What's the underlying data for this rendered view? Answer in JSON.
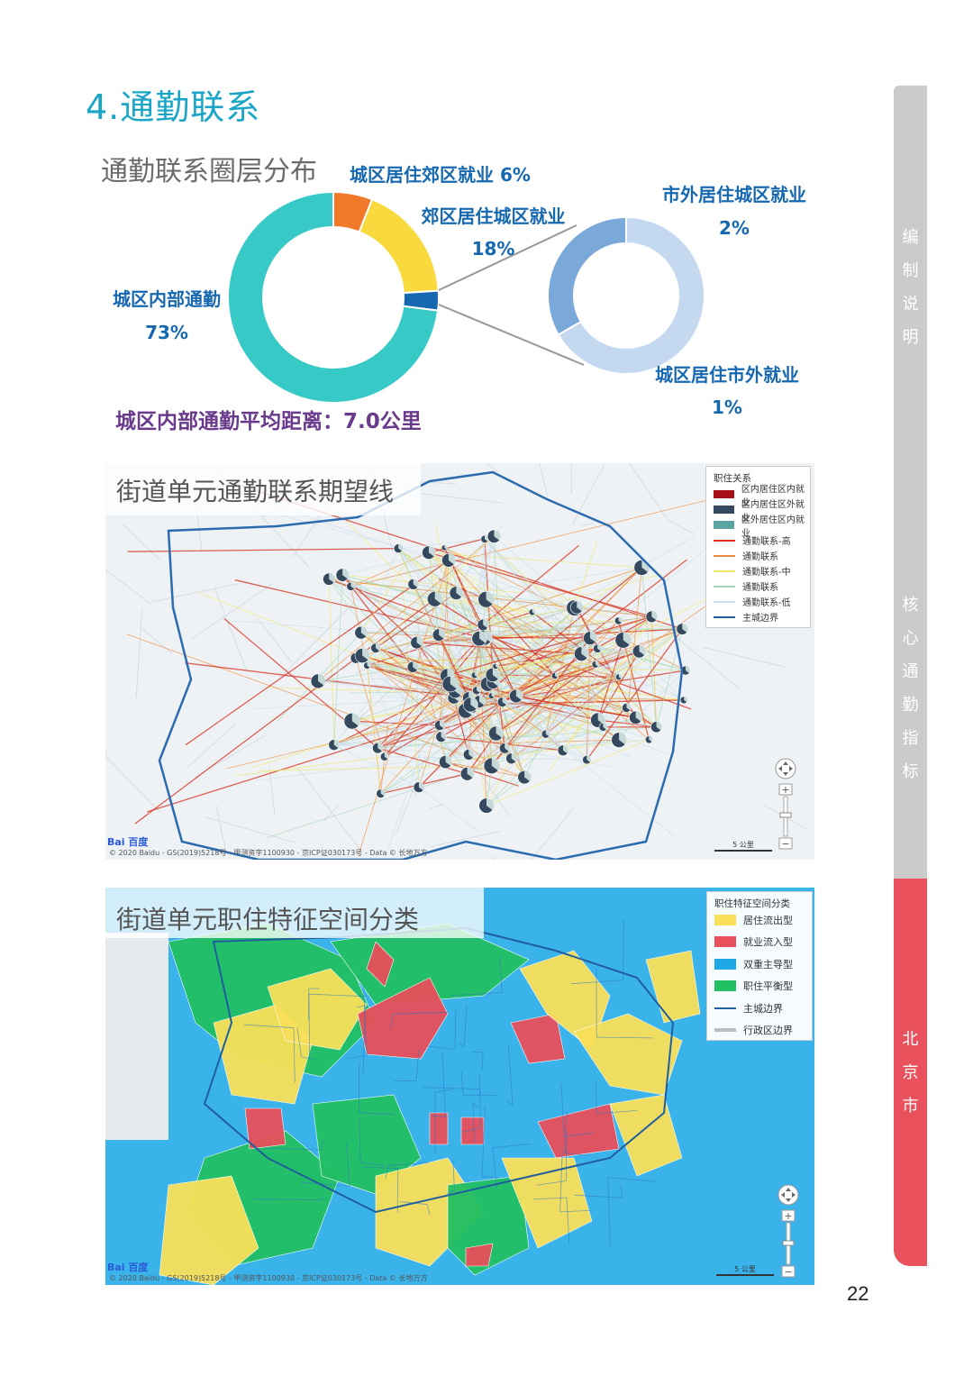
{
  "page": {
    "title": "4.通勤联系",
    "page_number": "22"
  },
  "donut": {
    "title": "通勤联系圈层分布",
    "main_labels": {
      "inner_city_name": "城区内部通勤",
      "inner_city_pct": "73%",
      "city_to_suburb": "城区居住郊区就业 6%",
      "suburb_to_city_name": "郊区居住城区就业",
      "suburb_to_city_pct": "18%"
    },
    "outer_labels": {
      "out_to_city_name": "市外居住城区就业",
      "out_to_city_pct": "2%",
      "city_to_out_name": "城区居住市外就业",
      "city_to_out_pct": "1%"
    },
    "avg_distance": "城区内部通勤平均距离：7.0公里"
  },
  "chart_data": [
    {
      "type": "pie",
      "categories": [
        "城区内部通勤",
        "城区居住郊区就业",
        "郊区居住城区就业",
        "市外"
      ],
      "values": [
        73,
        6,
        18,
        3
      ],
      "colors": [
        "#36c9c6",
        "#f07a2a",
        "#f8d93e",
        "#1668b0"
      ]
    },
    {
      "type": "pie",
      "categories": [
        "市外居住城区就业",
        "城区居住市外就业"
      ],
      "values": [
        2,
        1
      ],
      "colors": [
        "#c4d9ef",
        "#7aa8d8"
      ]
    }
  ],
  "map1": {
    "title": "街道单元通勤联系期望线",
    "legend_title": "职住关系",
    "legend": [
      {
        "label": "区内居住区内就业",
        "kind": "box",
        "color": "#a50f15"
      },
      {
        "label": "区内居住区外就业",
        "kind": "box",
        "color": "#34495e"
      },
      {
        "label": "区外居住区内就业",
        "kind": "box",
        "color": "#5aa3a3"
      },
      {
        "label": "通勤联系-高",
        "kind": "line",
        "color": "#d7301f"
      },
      {
        "label": "通勤联系",
        "kind": "line",
        "color": "#f08a3c"
      },
      {
        "label": "通勤联系-中",
        "kind": "line",
        "color": "#f3e66b"
      },
      {
        "label": "通勤联系",
        "kind": "line",
        "color": "#a8d8b8"
      },
      {
        "label": "通勤联系-低",
        "kind": "line",
        "color": "#c9dff0"
      },
      {
        "label": "主城边界",
        "kind": "line",
        "color": "#1f5f9e"
      }
    ],
    "scale": "5 公里",
    "footer": "© 2020 Baidu - GS(2019)5218号 - 甲测资字1100930 - 京ICP证030173号 - Data © 长地万方",
    "logo": "Bai 百度"
  },
  "map2": {
    "title": "街道单元职住特征空间分类",
    "legend_title": "职住特征空间分类",
    "legend": [
      {
        "label": "居住流出型",
        "kind": "box",
        "color": "#f8e05a"
      },
      {
        "label": "就业流入型",
        "kind": "box",
        "color": "#e8505b"
      },
      {
        "label": "双重主导型",
        "kind": "box",
        "color": "#1ea8e6"
      },
      {
        "label": "职住平衡型",
        "kind": "box",
        "color": "#22bf63"
      },
      {
        "label": "主城边界",
        "kind": "line",
        "color": "#1f5f9e"
      },
      {
        "label": "行政区边界",
        "kind": "line",
        "color": "#bdbdbd"
      }
    ],
    "scale": "5 公里",
    "footer": "© 2020 Baidu - GS(2019)5218号 - 甲测资字1100930 - 京ICP证030173号 - Data © 长地万方",
    "logo": "Bai 百度"
  },
  "sidebar": {
    "section1": "编制说明",
    "section2": "核心通勤指标",
    "section3": "北京市",
    "colors": {
      "inactive": "#c9c9c9",
      "active": "#e8505b"
    }
  }
}
